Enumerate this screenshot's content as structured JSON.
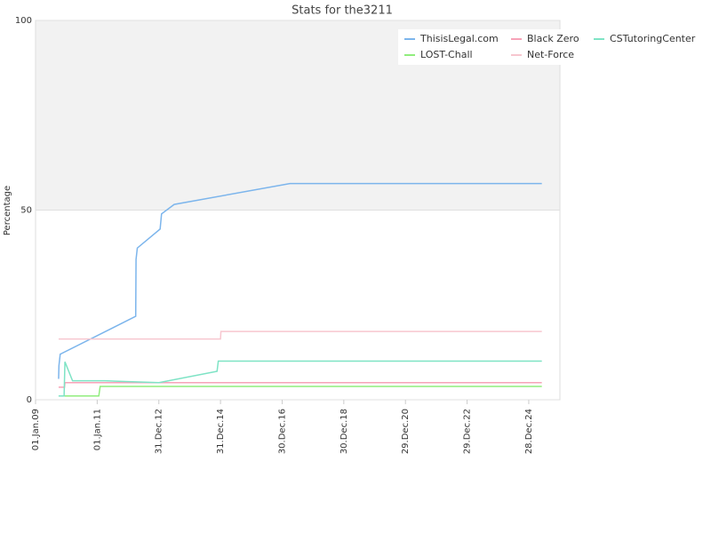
{
  "chart_data": {
    "type": "line",
    "title": "Stats for the3211",
    "y_label": "Percentage",
    "xlim": [
      "2009-01-01",
      "2026-01-01"
    ],
    "xticks": [
      {
        "value": "2009-01-01",
        "label": "01.Jan.09"
      },
      {
        "value": "2011-01-01",
        "label": "01.Jan.11"
      },
      {
        "value": "2012-12-31",
        "label": "31.Dec.12"
      },
      {
        "value": "2014-12-31",
        "label": "31.Dec.14"
      },
      {
        "value": "2016-12-30",
        "label": "30.Dec.16"
      },
      {
        "value": "2018-12-30",
        "label": "30.Dec.18"
      },
      {
        "value": "2020-12-29",
        "label": "29.Dec.20"
      },
      {
        "value": "2022-12-29",
        "label": "29.Dec.22"
      },
      {
        "value": "2024-12-28",
        "label": "28.Dec.24"
      }
    ],
    "ylim": [
      0,
      100
    ],
    "yticks": [
      0,
      50,
      100
    ],
    "grid": true,
    "legend": "top-right",
    "series": [
      {
        "name": "ThisisLegal.com",
        "color": "#7cb5ec",
        "x": [
          "2009-10-01",
          "2009-10-05",
          "2009-10-20",
          "2012-04-01",
          "2012-04-05",
          "2012-04-20",
          "2013-01-15",
          "2013-02-01",
          "2013-07-01",
          "2017-04-01",
          "2025-06-01"
        ],
        "values": [
          5.5,
          9,
          12,
          22,
          37,
          40,
          45,
          49,
          51.5,
          57,
          57
        ]
      },
      {
        "name": "LOST-Chall",
        "color": "#90ed7d",
        "x": [
          "2009-10-01",
          "2011-01-20",
          "2011-02-05",
          "2025-06-01"
        ],
        "values": [
          1,
          1,
          3.5,
          3.5
        ]
      },
      {
        "name": "Black Zero",
        "color": "#f7a3b8",
        "x": [
          "2009-10-01",
          "2009-12-10",
          "2009-12-15",
          "2025-06-01"
        ],
        "values": [
          3.3,
          3.3,
          4.5,
          4.5
        ]
      },
      {
        "name": "Net-Force",
        "color": "#f7c6cf",
        "x": [
          "2009-10-01",
          "2014-12-31",
          "2015-01-05",
          "2025-06-01"
        ],
        "values": [
          16,
          16,
          18,
          18
        ]
      },
      {
        "name": "CSTutoringCenter",
        "color": "#7ee3c5",
        "x": [
          "2009-10-01",
          "2009-12-05",
          "2009-12-15",
          "2010-03-15",
          "2011-04-01",
          "2013-01-01",
          "2014-11-20",
          "2014-12-05",
          "2025-06-01"
        ],
        "values": [
          1,
          1,
          10,
          5,
          5,
          4.5,
          7.5,
          10.2,
          10.2
        ]
      }
    ]
  }
}
